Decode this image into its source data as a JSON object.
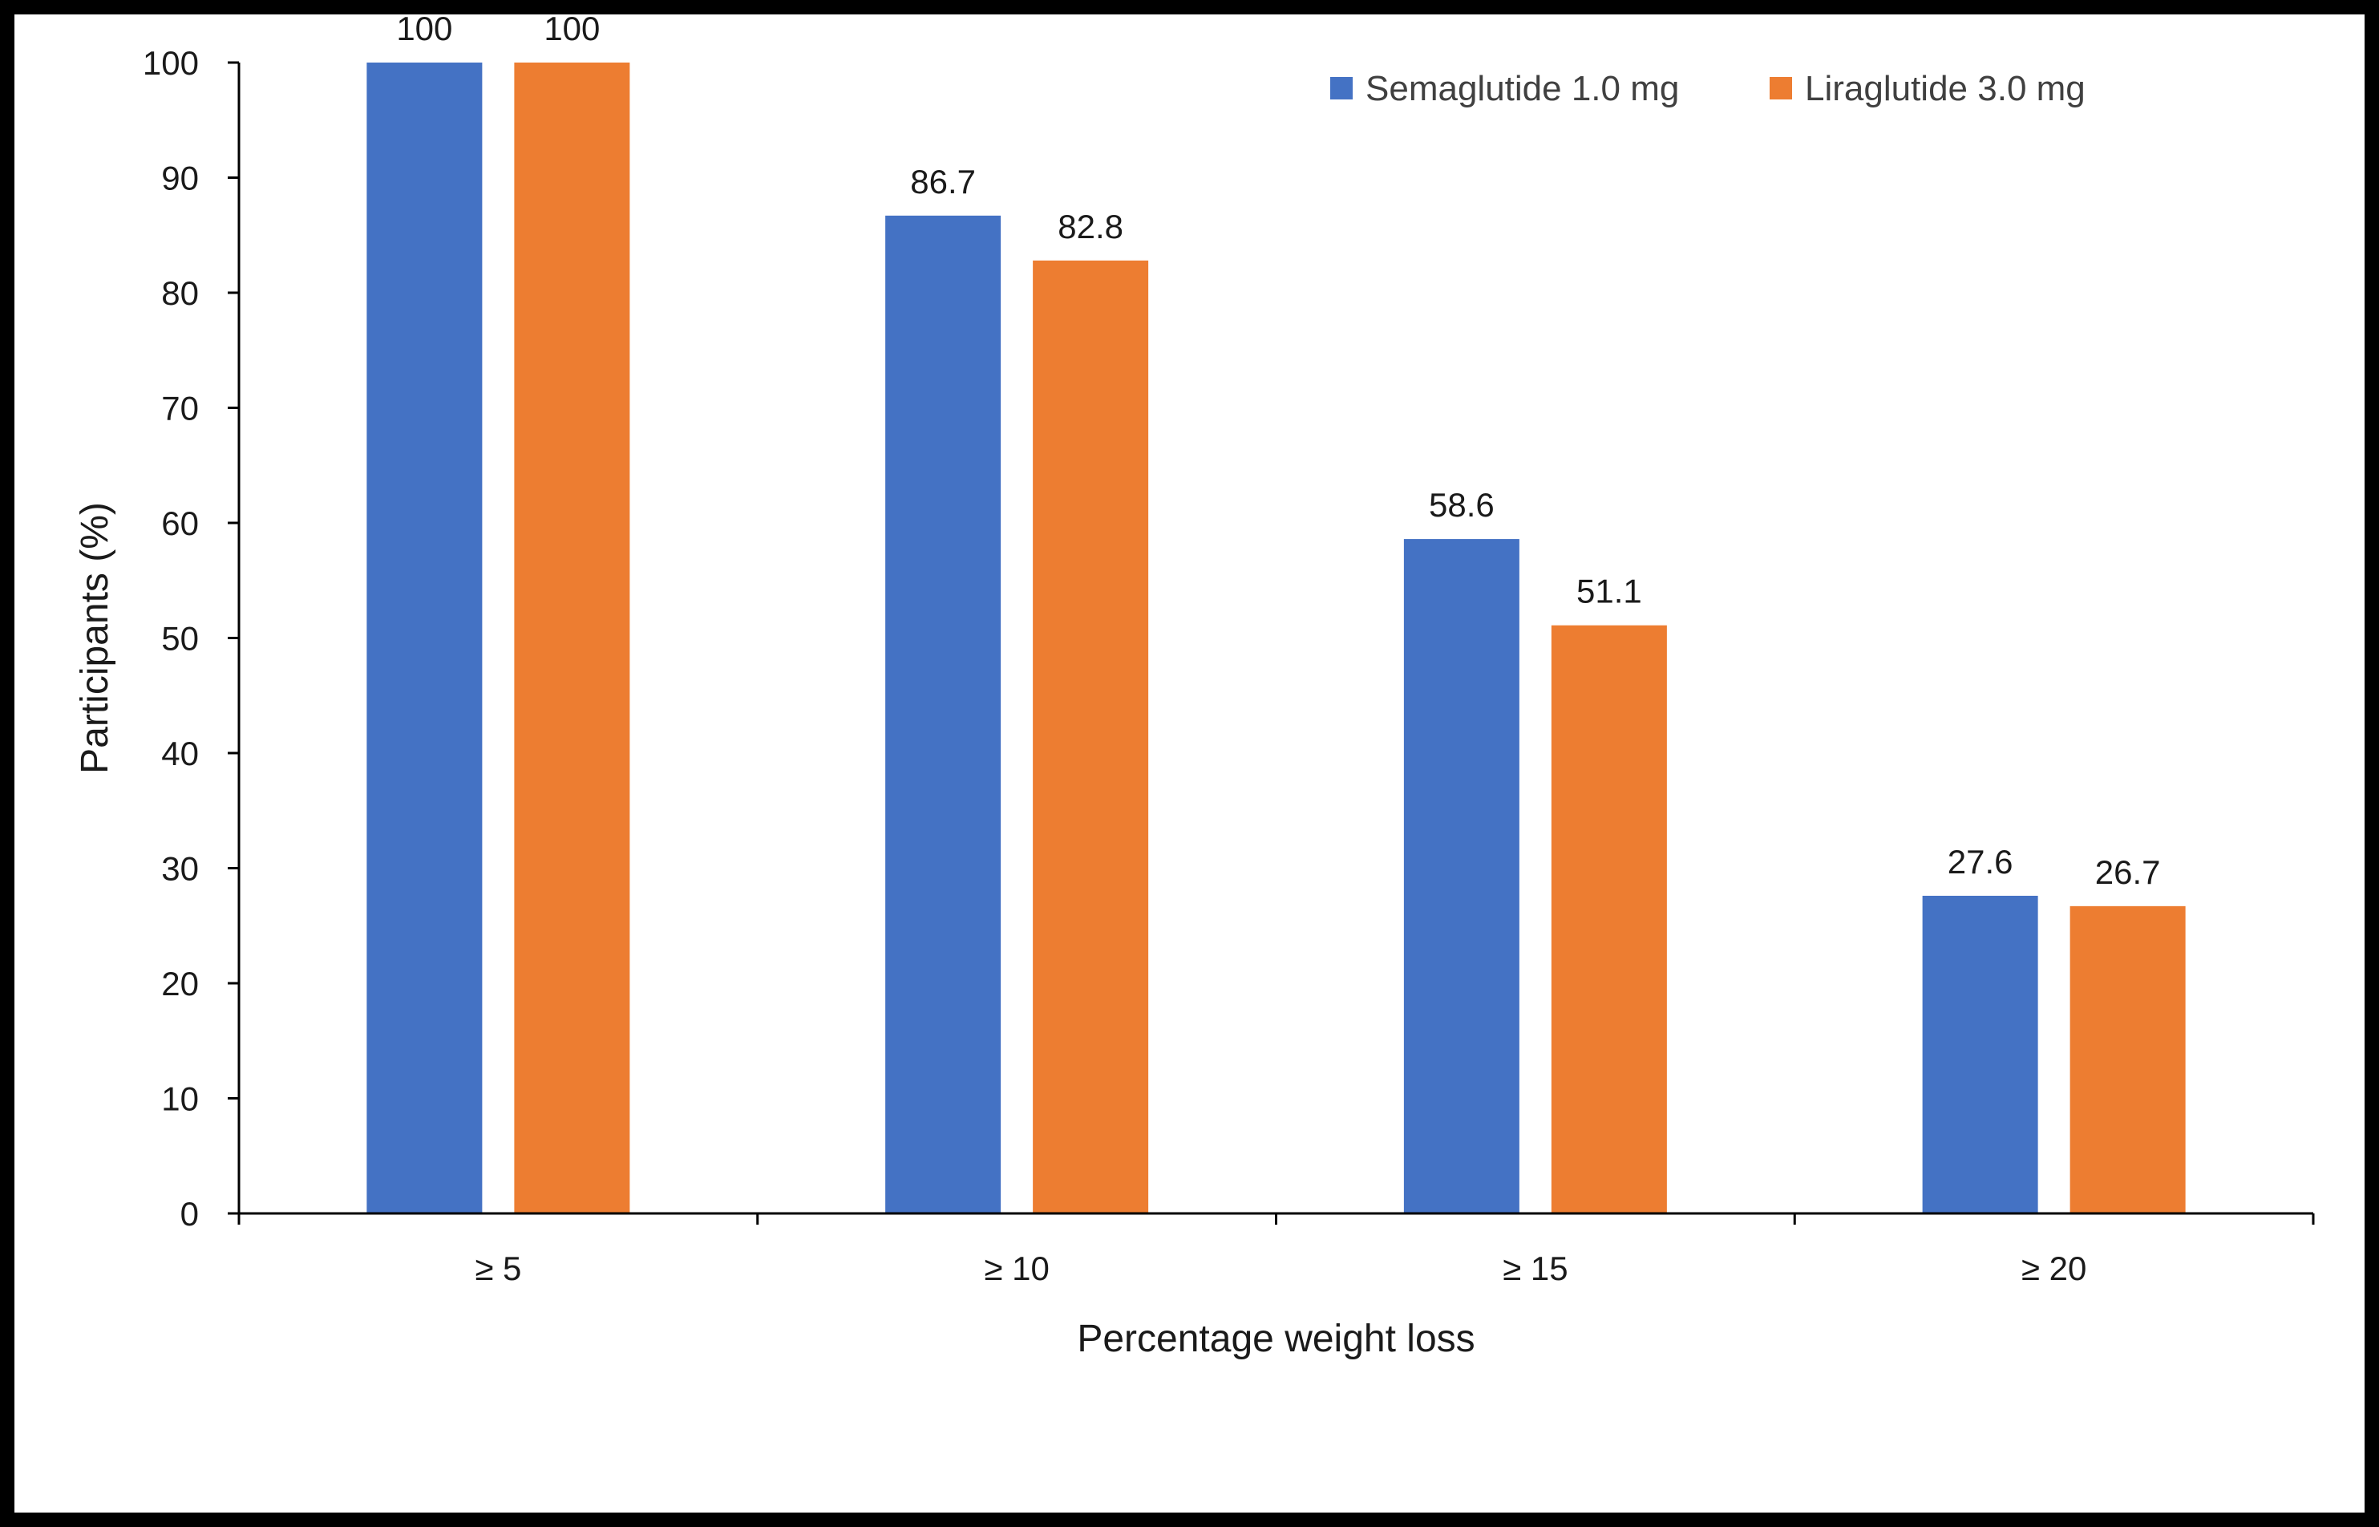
{
  "chart_data": {
    "type": "bar",
    "title": "",
    "xlabel": "Percentage weight loss",
    "ylabel": "Participants (%)",
    "ylim": [
      0,
      100
    ],
    "yticks": [
      0,
      10,
      20,
      30,
      40,
      50,
      60,
      70,
      80,
      90,
      100
    ],
    "grid": false,
    "legend_position": "top-right",
    "categories": [
      "≥ 5",
      "≥ 10",
      "≥ 15",
      "≥ 20"
    ],
    "series": [
      {
        "name": "Semaglutide 1.0 mg",
        "color": "#4472C4",
        "values": [
          100,
          86.7,
          58.6,
          27.6
        ],
        "labels": [
          "100",
          "86.7",
          "58.6",
          "27.6"
        ]
      },
      {
        "name": "Liraglutide 3.0 mg",
        "color": "#ED7D31",
        "values": [
          100,
          82.8,
          51.1,
          26.7
        ],
        "labels": [
          "100",
          "82.8",
          "51.1",
          "26.7"
        ]
      }
    ]
  }
}
